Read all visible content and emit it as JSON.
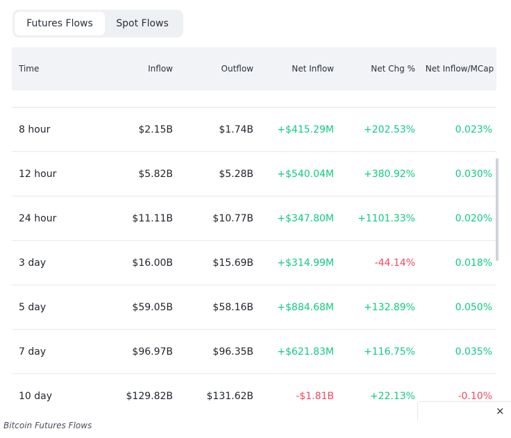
{
  "tabs": [
    {
      "label": "Futures Flows",
      "active": true
    },
    {
      "label": "Spot Flows",
      "active": false
    }
  ],
  "table": {
    "headers": [
      "Time",
      "Inflow",
      "Outflow",
      "Net Inflow",
      "Net Chg %",
      "Net Inflow/MCap"
    ],
    "rows": [
      {
        "time": "8 hour",
        "inflow": "$2.15B",
        "outflow": "$1.74B",
        "net_inflow": "+$415.29M",
        "net_chg": "+202.53%",
        "mcap": "0.023%",
        "net_dir": "pos",
        "chg_dir": "pos",
        "mcap_dir": "pos"
      },
      {
        "time": "12 hour",
        "inflow": "$5.82B",
        "outflow": "$5.28B",
        "net_inflow": "+$540.04M",
        "net_chg": "+380.92%",
        "mcap": "0.030%",
        "net_dir": "pos",
        "chg_dir": "pos",
        "mcap_dir": "pos"
      },
      {
        "time": "24 hour",
        "inflow": "$11.11B",
        "outflow": "$10.77B",
        "net_inflow": "+$347.80M",
        "net_chg": "+1101.33%",
        "mcap": "0.020%",
        "net_dir": "pos",
        "chg_dir": "pos",
        "mcap_dir": "pos"
      },
      {
        "time": "3 day",
        "inflow": "$16.00B",
        "outflow": "$15.69B",
        "net_inflow": "+$314.99M",
        "net_chg": "-44.14%",
        "mcap": "0.018%",
        "net_dir": "pos",
        "chg_dir": "neg",
        "mcap_dir": "pos"
      },
      {
        "time": "5 day",
        "inflow": "$59.05B",
        "outflow": "$58.16B",
        "net_inflow": "+$884.68M",
        "net_chg": "+132.89%",
        "mcap": "0.050%",
        "net_dir": "pos",
        "chg_dir": "pos",
        "mcap_dir": "pos"
      },
      {
        "time": "7 day",
        "inflow": "$96.97B",
        "outflow": "$96.35B",
        "net_inflow": "+$621.83M",
        "net_chg": "+116.75%",
        "mcap": "0.035%",
        "net_dir": "pos",
        "chg_dir": "pos",
        "mcap_dir": "pos"
      },
      {
        "time": "10 day",
        "inflow": "$129.82B",
        "outflow": "$131.62B",
        "net_inflow": "-$1.81B",
        "net_chg": "+22.13%",
        "mcap": "-0.10%",
        "net_dir": "neg",
        "chg_dir": "pos",
        "mcap_dir": "neg"
      }
    ]
  },
  "popup": {
    "close_icon": "close-icon",
    "close_glyph": "×"
  },
  "caption": "Bitcoin Futures Flows",
  "colors": {
    "positive": "#0ecb81",
    "negative": "#f6465d",
    "header_bg": "#f1f3f6"
  }
}
